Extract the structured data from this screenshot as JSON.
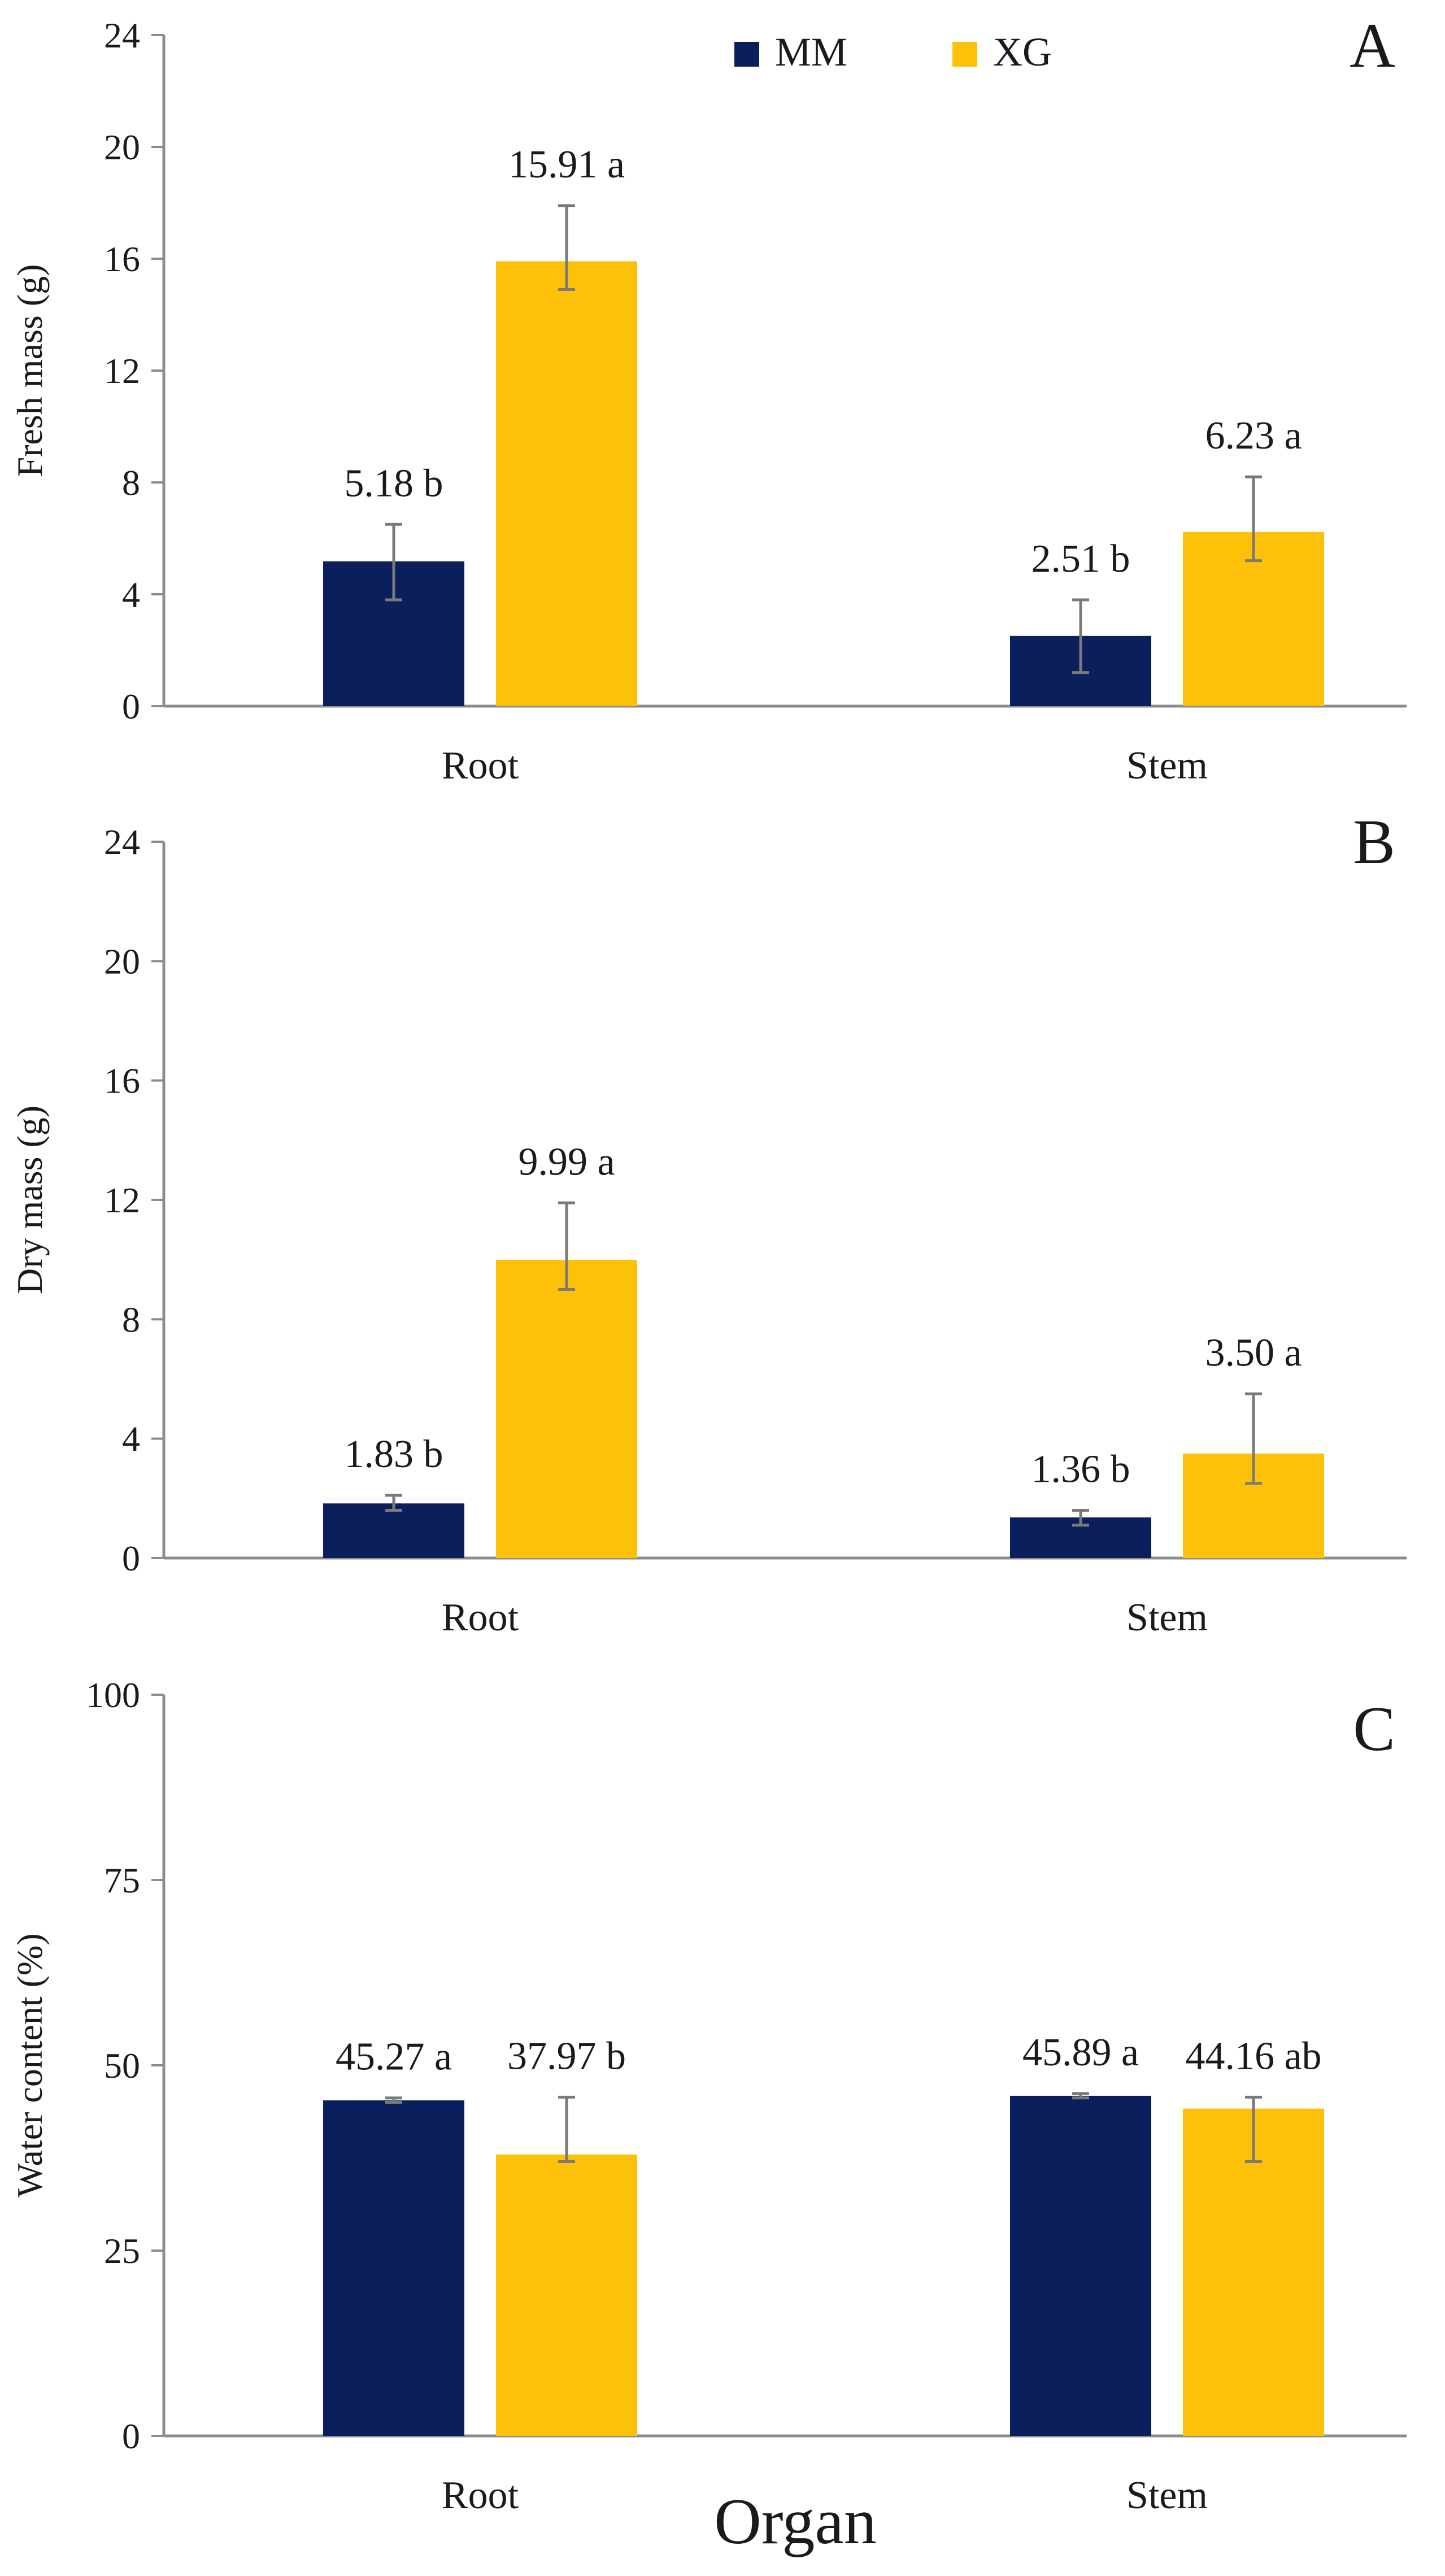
{
  "colors": {
    "MM": "#0b1f5c",
    "XG": "#fdc10a"
  },
  "legend": [
    {
      "key": "MM",
      "label": "MM"
    },
    {
      "key": "XG",
      "label": "XG"
    }
  ],
  "common_xlabel": "Organ",
  "chart_data": [
    {
      "type": "bar",
      "panel": "A",
      "ylabel": "Fresh mass (g)",
      "ylim": [
        0,
        24
      ],
      "yticks": [
        0,
        4,
        8,
        12,
        16,
        20,
        24
      ],
      "categories": [
        "Root",
        "Stem"
      ],
      "series": [
        {
          "name": "MM",
          "values": [
            5.18,
            2.51
          ],
          "err_low": [
            3.8,
            1.2
          ],
          "err_high": [
            6.5,
            3.8
          ],
          "labels": [
            "5.18 b",
            "2.51 b"
          ]
        },
        {
          "name": "XG",
          "values": [
            15.91,
            6.23
          ],
          "err_low": [
            14.9,
            5.2
          ],
          "err_high": [
            17.9,
            8.2
          ],
          "labels": [
            "15.91 a",
            "6.23 a"
          ]
        }
      ]
    },
    {
      "type": "bar",
      "panel": "B",
      "ylabel": "Dry mass (g)",
      "ylim": [
        0,
        24
      ],
      "yticks": [
        0,
        4,
        8,
        12,
        16,
        20,
        24
      ],
      "categories": [
        "Root",
        "Stem"
      ],
      "series": [
        {
          "name": "MM",
          "values": [
            1.83,
            1.36
          ],
          "err_low": [
            1.6,
            1.1
          ],
          "err_high": [
            2.1,
            1.6
          ],
          "labels": [
            "1.83 b",
            "1.36 b"
          ]
        },
        {
          "name": "XG",
          "values": [
            9.99,
            3.5
          ],
          "err_low": [
            9.0,
            2.5
          ],
          "err_high": [
            11.9,
            5.5
          ],
          "labels": [
            "9.99 a",
            "3.50 a"
          ]
        }
      ]
    },
    {
      "type": "bar",
      "panel": "C",
      "ylabel": "Water content (%)",
      "ylim": [
        0,
        100
      ],
      "yticks": [
        0,
        25,
        50,
        75,
        100
      ],
      "categories": [
        "Root",
        "Stem"
      ],
      "series": [
        {
          "name": "MM",
          "values": [
            45.27,
            45.89
          ],
          "err_low": [
            45.0,
            45.6
          ],
          "err_high": [
            45.6,
            46.2
          ],
          "labels": [
            "45.27 a",
            "45.89 a"
          ]
        },
        {
          "name": "XG",
          "values": [
            37.97,
            44.16
          ],
          "err_low": [
            37.0,
            37.0
          ],
          "err_high": [
            45.7,
            45.7
          ],
          "labels": [
            "37.97 b",
            "44.16 ab"
          ]
        }
      ]
    }
  ]
}
